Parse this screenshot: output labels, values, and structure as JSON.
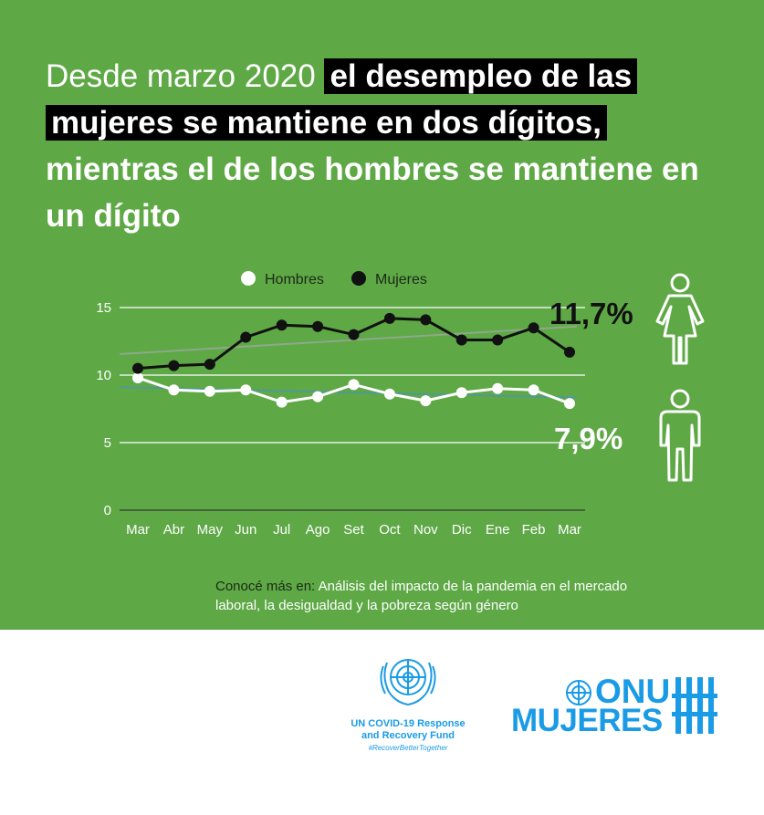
{
  "headline": {
    "part_light": "Desde marzo 2020 ",
    "part_highlight_1": "el desempleo de las",
    "part_highlight_2": "mujeres se mantiene en dos dígitos,",
    "part_bold": "mientras el de los hombres se mantiene en un dígito"
  },
  "annotations": {
    "mujeres_pct": "11,7%",
    "hombres_pct": "7,9%"
  },
  "source": {
    "prefix": "Conocé más en: ",
    "link_text": "Análisis del impacto de la pandemia en el mercado laboral, la desigualdad y la pobreza según género"
  },
  "footer": {
    "un_fund_line1": "UN COVID-19 Response",
    "un_fund_line2": "and Recovery Fund",
    "un_fund_hashtag": "#RecoverBetterTogether",
    "onu_line1": "ONU",
    "onu_line2": "MUJERES"
  },
  "colors": {
    "background_green": "#5ea846",
    "mujeres_line": "#111111",
    "hombres_line": "#ffffff",
    "trend_mujeres": "#9aa89a",
    "trend_hombres": "#4e96a8",
    "brand_blue": "#1a9be6"
  },
  "icons": [
    "woman-figure-icon",
    "man-figure-icon",
    "un-emblem-icon",
    "onu-mujeres-logo-icon"
  ],
  "chart_data": {
    "type": "line",
    "categories": [
      "Mar",
      "Abr",
      "May",
      "Jun",
      "Jul",
      "Ago",
      "Set",
      "Oct",
      "Nov",
      "Dic",
      "Ene",
      "Feb",
      "Mar"
    ],
    "series": [
      {
        "name": "Hombres",
        "values": [
          9.8,
          8.9,
          8.8,
          8.9,
          8.0,
          8.4,
          9.3,
          8.6,
          8.1,
          8.7,
          9.0,
          8.9,
          7.9
        ]
      },
      {
        "name": "Mujeres",
        "values": [
          10.5,
          10.7,
          10.8,
          12.8,
          13.7,
          13.6,
          13.0,
          14.2,
          14.1,
          12.6,
          12.6,
          13.5,
          11.7
        ]
      }
    ],
    "yticks": [
      0,
      5,
      10,
      15
    ],
    "ylim": [
      0,
      15
    ],
    "legend_position": "top-center",
    "grid": true,
    "trendlines": true
  }
}
